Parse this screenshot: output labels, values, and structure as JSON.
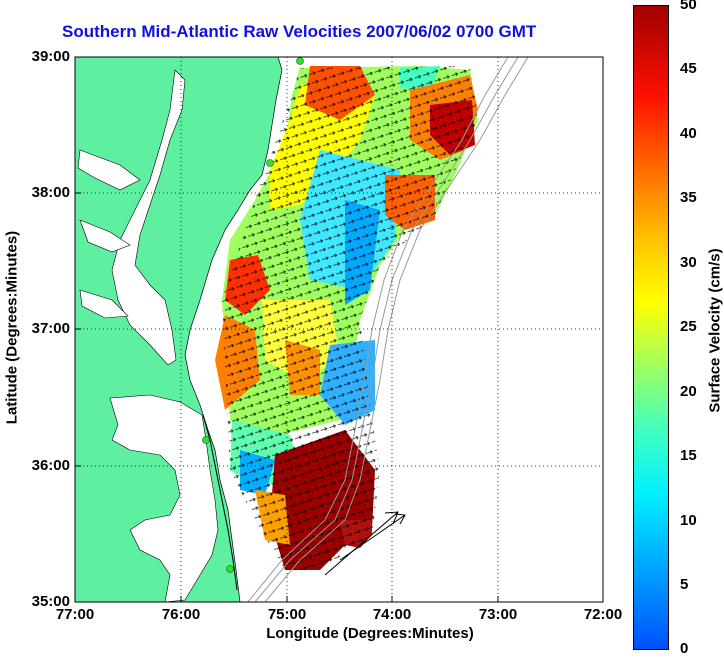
{
  "title": "Southern Mid-Atlantic Raw Velocities 2007/06/02 0700 GMT",
  "axes": {
    "xlabel": "Longitude (Degrees:Minutes)",
    "ylabel": "Latitude (Degrees:Minutes)",
    "x_ticks": [
      "77:00",
      "76:00",
      "75:00",
      "74:00",
      "73:00",
      "72:00"
    ],
    "y_ticks": [
      "39:00",
      "38:00",
      "37:00",
      "36:00",
      "35:00"
    ],
    "x_range": [
      -77,
      -72
    ],
    "y_range": [
      35,
      39
    ],
    "grid": "dotted"
  },
  "colorbar": {
    "label": "Surface Velocity (cm/s)",
    "ticks": [
      "50",
      "45",
      "40",
      "35",
      "30",
      "25",
      "20",
      "15",
      "10",
      "5",
      "0"
    ],
    "range": [
      0,
      50
    ],
    "colormap": "jet"
  },
  "colors": {
    "land": "#5ef0a0",
    "title": "#1010e0",
    "coast": "#000000",
    "station": "#30e030"
  },
  "stations": [
    {
      "lon": -75.12,
      "lat": 38.97
    },
    {
      "lon": -75.17,
      "lat": 38.22
    },
    {
      "lon": -75.72,
      "lat": 36.18
    },
    {
      "lon": -75.49,
      "lat": 35.24
    }
  ]
}
